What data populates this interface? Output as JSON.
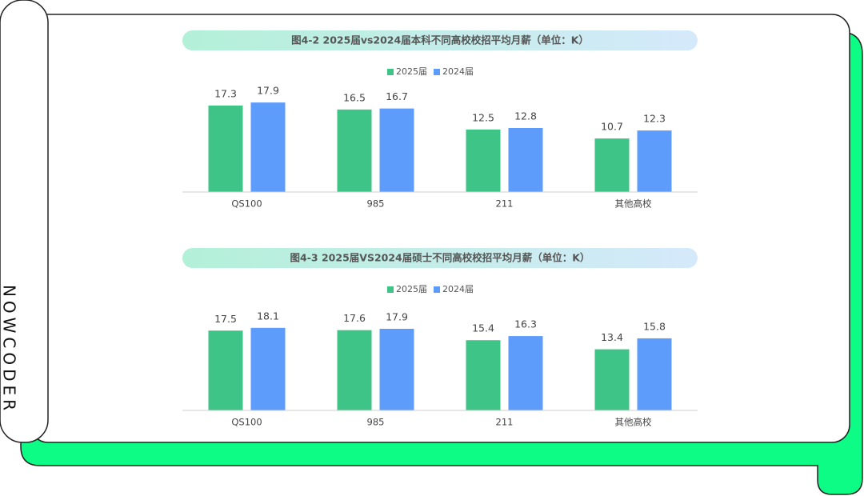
{
  "brand": "NOWCODER",
  "chart_data": [
    {
      "type": "bar",
      "title": "图4-2 2025届vs2024届本科不同高校校招平均月薪（单位：K）",
      "categories": [
        "QS100",
        "985",
        "211",
        "其他高校"
      ],
      "series": [
        {
          "name": "2025届",
          "color": "#3ec487",
          "values": [
            17.3,
            16.5,
            12.5,
            10.7
          ]
        },
        {
          "name": "2024届",
          "color": "#5e9cfc",
          "values": [
            17.9,
            16.7,
            12.8,
            12.3
          ]
        }
      ],
      "ylim": [
        0,
        20
      ]
    },
    {
      "type": "bar",
      "title": "图4-3 2025届VS2024届硕士不同高校校招平均月薪（单位：K）",
      "categories": [
        "QS100",
        "985",
        "211",
        "其他高校"
      ],
      "series": [
        {
          "name": "2025届",
          "color": "#3ec487",
          "values": [
            17.5,
            17.6,
            15.4,
            13.4
          ]
        },
        {
          "name": "2024届",
          "color": "#5e9cfc",
          "values": [
            18.1,
            17.9,
            16.3,
            15.8
          ]
        }
      ],
      "ylim": [
        0,
        20
      ]
    }
  ]
}
